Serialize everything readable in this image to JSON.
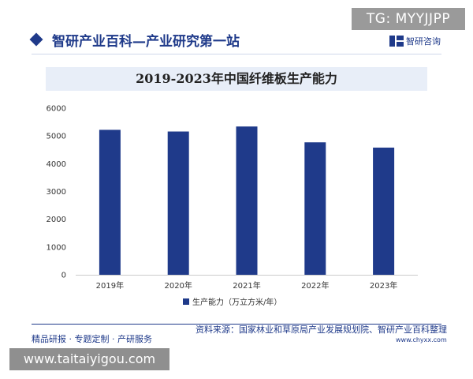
{
  "badge": "TG: MYYJJPP",
  "header": {
    "title": "智研产业百科—产业研究第一站",
    "brand": "智研咨询"
  },
  "footer": {
    "left": "精品研报 · 专题定制 · 产研服务",
    "source": "资料来源：国家林业和草原局产业发展规划院、智研产业百科整理",
    "website": "www.chyxx.com"
  },
  "url_bar": "www.taitaiyigou.com",
  "colors": {
    "bar": "#1f3a8a",
    "brand": "#1f3a8a",
    "title_band": "#e8eef8"
  },
  "chart_data": {
    "type": "bar",
    "title": "2019-2023年中国纤维板生产能力",
    "categories": [
      "2019年",
      "2020年",
      "2021年",
      "2022年",
      "2023年"
    ],
    "series": [
      {
        "name": "生产能力（万立方米/年）",
        "values": [
          5220,
          5160,
          5340,
          4770,
          4580
        ]
      }
    ],
    "ylim": [
      0,
      6000
    ],
    "yticks": [
      0,
      1000,
      2000,
      3000,
      4000,
      5000,
      6000
    ],
    "grid": false,
    "legend": "bottom-center"
  }
}
